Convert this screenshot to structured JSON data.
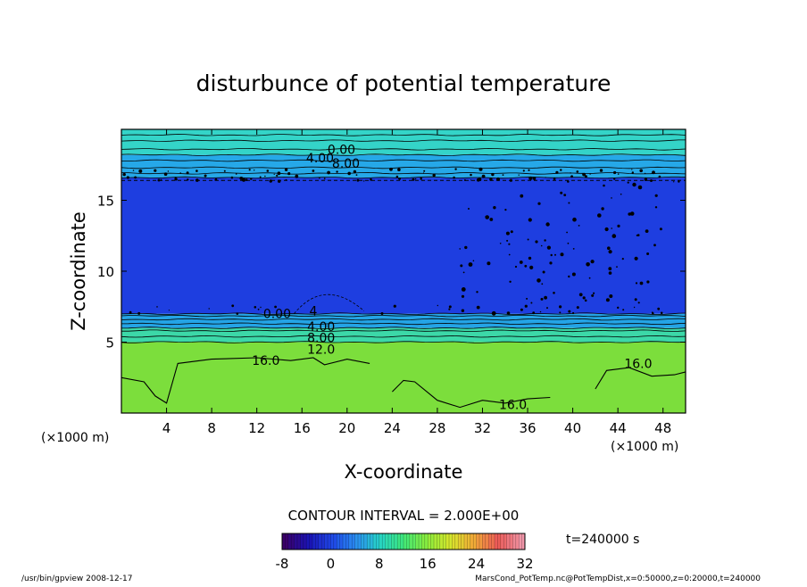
{
  "chart_data": {
    "type": "heatmap",
    "title": "disturbunce of potential temperature",
    "xlabel": "X-coordinate",
    "ylabel": "Z-coordinate",
    "x_unit_left": "(×1000 m)",
    "x_unit_right": "(×1000 m)",
    "xlim": [
      0,
      50
    ],
    "ylim": [
      0,
      20
    ],
    "x_ticks": [
      4,
      8,
      12,
      16,
      20,
      24,
      28,
      32,
      36,
      40,
      44,
      48
    ],
    "y_ticks": [
      5,
      10,
      15
    ],
    "contour_interval_text": "CONTOUR INTERVAL = 2.000E+00",
    "time_text": "t=240000 s",
    "colorbar": {
      "ticks": [
        -8,
        0,
        8,
        16,
        24,
        32
      ],
      "min": -8,
      "max": 32,
      "colors": [
        "#3a006a",
        "#1a14b4",
        "#1f48e8",
        "#2a8ef0",
        "#26d4c8",
        "#3ee87a",
        "#8cec3c",
        "#d8e62c",
        "#f2a838",
        "#ec5a58",
        "#f096a8"
      ]
    },
    "layers": [
      {
        "z_bottom": 0,
        "z_top": 5,
        "value": 16,
        "color": "#7cde3c"
      },
      {
        "z_bottom": 5,
        "z_top": 6,
        "value": 12,
        "color": "#3cd8a8"
      },
      {
        "z_bottom": 6,
        "z_top": 7,
        "value": 6,
        "color": "#24a4e6"
      },
      {
        "z_bottom": 7,
        "z_top": 16.6,
        "value": -4,
        "color": "#1e3ee0"
      },
      {
        "z_bottom": 16.6,
        "z_top": 18.2,
        "value": 6,
        "color": "#26a8e8"
      },
      {
        "z_bottom": 18.2,
        "z_top": 20,
        "value": 10,
        "color": "#34d4c8"
      }
    ],
    "contour_labels": [
      {
        "x": 19.5,
        "z": 18.6,
        "text": "0.00"
      },
      {
        "x": 17.6,
        "z": 18.0,
        "text": "4.00"
      },
      {
        "x": 19.9,
        "z": 17.6,
        "text": "8.00"
      },
      {
        "x": 13.8,
        "z": 7.0,
        "text": "0.00"
      },
      {
        "x": 17.0,
        "z": 7.2,
        "text": "4"
      },
      {
        "x": 17.7,
        "z": 6.1,
        "text": "4.00"
      },
      {
        "x": 17.7,
        "z": 5.3,
        "text": "8.00"
      },
      {
        "x": 17.7,
        "z": 4.5,
        "text": "12.0"
      },
      {
        "x": 12.8,
        "z": 3.7,
        "text": "16.0"
      },
      {
        "x": 45.8,
        "z": 3.5,
        "text": "16.0"
      },
      {
        "x": 34.7,
        "z": 0.6,
        "text": "16.0"
      }
    ]
  },
  "footer": {
    "left": "/usr/bin/gpview   2008-12-17",
    "right": "MarsCond_PotTemp.nc@PotTempDist,x=0:50000,z=0:20000,t=240000"
  }
}
